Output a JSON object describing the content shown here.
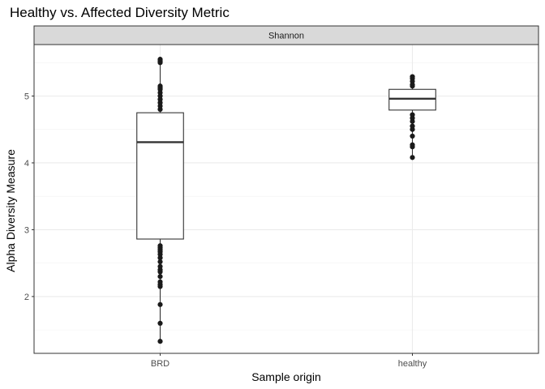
{
  "chart_data": {
    "type": "box",
    "title": "Healthy vs. Affected Diversity Metric",
    "facet_label": "Shannon",
    "xlabel": "Sample origin",
    "ylabel": "Alpha Diversity Measure",
    "categories": [
      "BRD",
      "healthy"
    ],
    "ylim": [
      1.15,
      5.77
    ],
    "yticks": [
      2,
      3,
      4,
      5
    ],
    "grid": true,
    "boxes": [
      {
        "category": "BRD",
        "whisker_low": 1.33,
        "q1": 2.86,
        "median": 4.31,
        "q3": 4.75,
        "whisker_high": 5.55,
        "points": [
          5.55,
          5.52,
          5.5,
          5.15,
          5.12,
          5.1,
          5.05,
          5.0,
          4.95,
          4.9,
          4.85,
          4.8,
          2.76,
          2.73,
          2.7,
          2.67,
          2.63,
          2.58,
          2.52,
          2.45,
          2.4,
          2.37,
          2.3,
          2.22,
          2.18,
          2.15,
          1.88,
          1.6,
          1.33
        ]
      },
      {
        "category": "healthy",
        "whisker_low": 4.08,
        "q1": 4.79,
        "median": 4.96,
        "q3": 5.1,
        "whisker_high": 5.29,
        "points": [
          5.29,
          5.26,
          5.22,
          5.17,
          5.15,
          4.72,
          4.67,
          4.62,
          4.55,
          4.5,
          4.4,
          4.27,
          4.24,
          4.08
        ]
      }
    ]
  }
}
